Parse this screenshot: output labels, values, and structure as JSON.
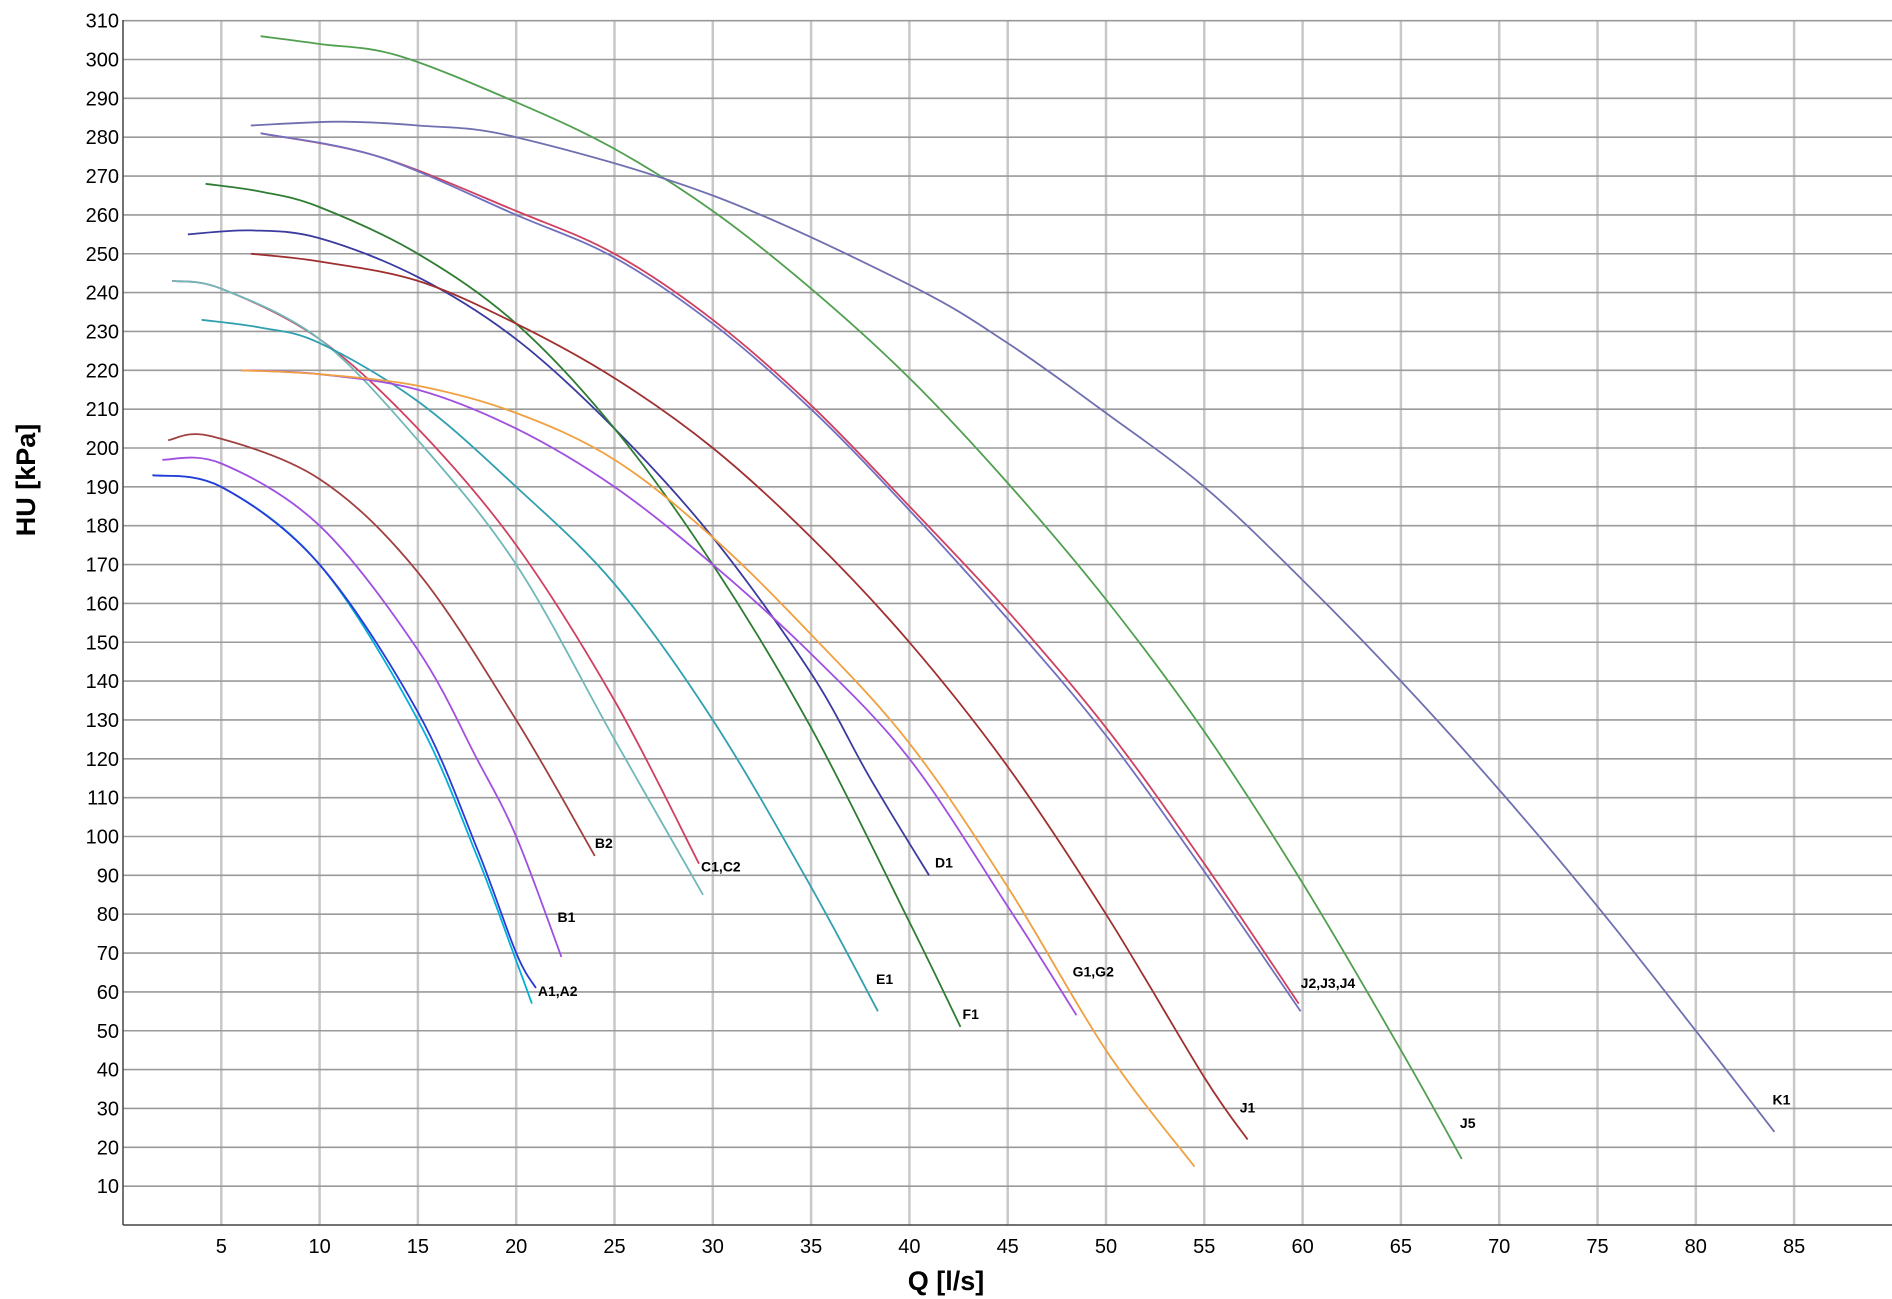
{
  "chart_data": {
    "type": "line",
    "title": "",
    "xlabel": "Q [l/s]",
    "ylabel": "HU [kPa]",
    "xlim": [
      0,
      90
    ],
    "ylim": [
      0,
      310
    ],
    "x_ticks": [
      5,
      10,
      15,
      20,
      25,
      30,
      35,
      40,
      45,
      50,
      55,
      60,
      65,
      70,
      75,
      80,
      85
    ],
    "y_ticks": [
      10,
      20,
      30,
      40,
      50,
      60,
      70,
      80,
      90,
      100,
      110,
      120,
      130,
      140,
      150,
      160,
      170,
      180,
      190,
      200,
      210,
      220,
      230,
      240,
      250,
      260,
      270,
      280,
      290,
      300,
      310
    ],
    "grid": true,
    "series": [
      {
        "name": "A1,A2",
        "color": "#00b0d8",
        "x": [
          1.5,
          5,
          10,
          15,
          18,
          20,
          20.8
        ],
        "y": [
          193,
          190,
          170,
          130,
          95,
          68,
          57
        ]
      },
      {
        "name": "A1,A2",
        "color": "#2a3ad8",
        "x": [
          1.5,
          5,
          10,
          15,
          18,
          20,
          21
        ],
        "y": [
          193,
          190,
          170,
          132,
          97,
          70,
          61
        ]
      },
      {
        "name": "B1",
        "color": "#a050e0",
        "x": [
          2,
          5,
          10,
          15,
          18,
          20,
          22.3
        ],
        "y": [
          197,
          196,
          180,
          148,
          120,
          100,
          69
        ]
      },
      {
        "name": "B2",
        "color": "#a04040",
        "x": [
          2.3,
          4.5,
          10,
          15,
          20,
          24
        ],
        "y": [
          202,
          203,
          192,
          168,
          130,
          95
        ]
      },
      {
        "name": "C1,C2",
        "color": "#d04060",
        "x": [
          2.5,
          5,
          10,
          15,
          20,
          25,
          29.3
        ],
        "y": [
          243,
          241,
          228,
          205,
          175,
          135,
          93
        ]
      },
      {
        "name": "C1,C2",
        "color": "#70b8b8",
        "x": [
          2.5,
          5,
          10,
          15,
          20,
          25,
          29.5
        ],
        "y": [
          243,
          241,
          228,
          202,
          170,
          125,
          85
        ]
      },
      {
        "name": "D1",
        "color": "#3a3aa0",
        "x": [
          3.3,
          6.5,
          10,
          15,
          20,
          25,
          30,
          35,
          38,
          41
        ],
        "y": [
          255,
          256,
          254,
          244,
          228,
          205,
          177,
          142,
          115,
          90
        ]
      },
      {
        "name": "E1",
        "color": "#30a0b0",
        "x": [
          4,
          7,
          10,
          15,
          20,
          25,
          30,
          35,
          38.4
        ],
        "y": [
          233,
          231,
          227,
          212,
          190,
          165,
          130,
          87,
          55
        ]
      },
      {
        "name": "F1",
        "color": "#2e7d32",
        "x": [
          4.2,
          7,
          10,
          15,
          20,
          25,
          30,
          35,
          40,
          42.6
        ],
        "y": [
          268,
          266,
          262,
          250,
          232,
          205,
          170,
          128,
          78,
          51
        ]
      },
      {
        "name": "G1,G2",
        "color": "#a050e0",
        "x": [
          6,
          10,
          15,
          20,
          25,
          30,
          35,
          40,
          45,
          48.5
        ],
        "y": [
          220,
          219,
          215,
          205,
          190,
          170,
          147,
          120,
          82,
          54
        ]
      },
      {
        "name": "",
        "color": "#f0a040",
        "x": [
          6,
          10,
          15,
          20,
          25,
          30,
          35,
          40,
          45,
          50,
          54.5
        ],
        "y": [
          220,
          219,
          216,
          209,
          197,
          177,
          152,
          124,
          87,
          45,
          15
        ]
      },
      {
        "name": "J1",
        "color": "#a03030",
        "x": [
          6.5,
          10,
          15,
          20,
          25,
          30,
          35,
          40,
          45,
          50,
          55,
          57.2
        ],
        "y": [
          250,
          248,
          243,
          232,
          218,
          200,
          177,
          150,
          118,
          80,
          38,
          22
        ]
      },
      {
        "name": "J2,J3,J4",
        "color": "#d04060",
        "x": [
          7,
          13,
          20,
          25,
          30,
          35,
          40,
          45,
          50,
          55,
          59.8
        ],
        "y": [
          281,
          275,
          261,
          250,
          233,
          211,
          185,
          158,
          128,
          93,
          57
        ]
      },
      {
        "name": "J2,J3,J4",
        "color": "#7070c0",
        "x": [
          7,
          13,
          20,
          25,
          30,
          35,
          40,
          45,
          50,
          55,
          59.9
        ],
        "y": [
          281,
          275,
          260,
          249,
          232,
          210,
          184,
          156,
          126,
          91,
          55
        ]
      },
      {
        "name": "J5",
        "color": "#50a050",
        "x": [
          7,
          10,
          14,
          20,
          25,
          30,
          35,
          40,
          45,
          50,
          55,
          60,
          65,
          68.1
        ],
        "y": [
          306,
          304,
          301,
          289,
          277,
          261,
          241,
          218,
          191,
          161,
          127,
          88,
          45,
          17
        ]
      },
      {
        "name": "K1",
        "color": "#7070b0",
        "x": [
          6.5,
          11,
          15,
          20,
          30,
          40,
          45,
          50,
          55,
          60,
          65,
          70,
          75,
          80,
          84
        ],
        "y": [
          283,
          284,
          283,
          280,
          265,
          242,
          227,
          209,
          190,
          166,
          140,
          112,
          82,
          50,
          24
        ]
      }
    ],
    "labels": [
      {
        "text": "A1,A2",
        "x": 21,
        "y": 59
      },
      {
        "text": "B1",
        "x": 22,
        "y": 78
      },
      {
        "text": "B2",
        "x": 23.9,
        "y": 97
      },
      {
        "text": "C1,C2",
        "x": 29.3,
        "y": 91
      },
      {
        "text": "D1",
        "x": 41.2,
        "y": 92
      },
      {
        "text": "E1",
        "x": 38.2,
        "y": 62
      },
      {
        "text": "F1",
        "x": 42.6,
        "y": 53
      },
      {
        "text": "G1,G2",
        "x": 48.2,
        "y": 64
      },
      {
        "text": "J1",
        "x": 56.7,
        "y": 29
      },
      {
        "text": "J2,J3,J4",
        "x": 59.8,
        "y": 61
      },
      {
        "text": "J5",
        "x": 67.9,
        "y": 25
      },
      {
        "text": "K1",
        "x": 83.8,
        "y": 31
      }
    ]
  }
}
